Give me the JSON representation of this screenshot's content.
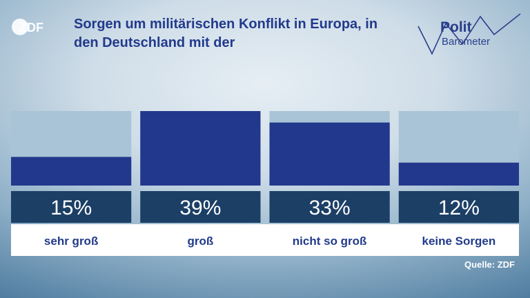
{
  "header": {
    "logo_text": "ZDF",
    "title": "Sorgen um militärischen Konflikt in Europa, in den Deutschland mit der",
    "brand_line1": "Polit",
    "brand_line2": "Barometer"
  },
  "chart_data": {
    "type": "bar",
    "categories": [
      "sehr groß",
      "groß",
      "nicht so groß",
      "keine Sorgen"
    ],
    "values": [
      15,
      39,
      33,
      12
    ],
    "value_labels": [
      "15%",
      "39%",
      "33%",
      "12%"
    ],
    "ylim": [
      0,
      39
    ],
    "grid": false,
    "legend": "none"
  },
  "footer": {
    "source": "Quelle: ZDF"
  },
  "colors": {
    "bar": "#22388d",
    "track": "#a9c4d6",
    "value_band": "#1c3f66",
    "label_band": "#ffffff",
    "title": "#223a8c"
  }
}
